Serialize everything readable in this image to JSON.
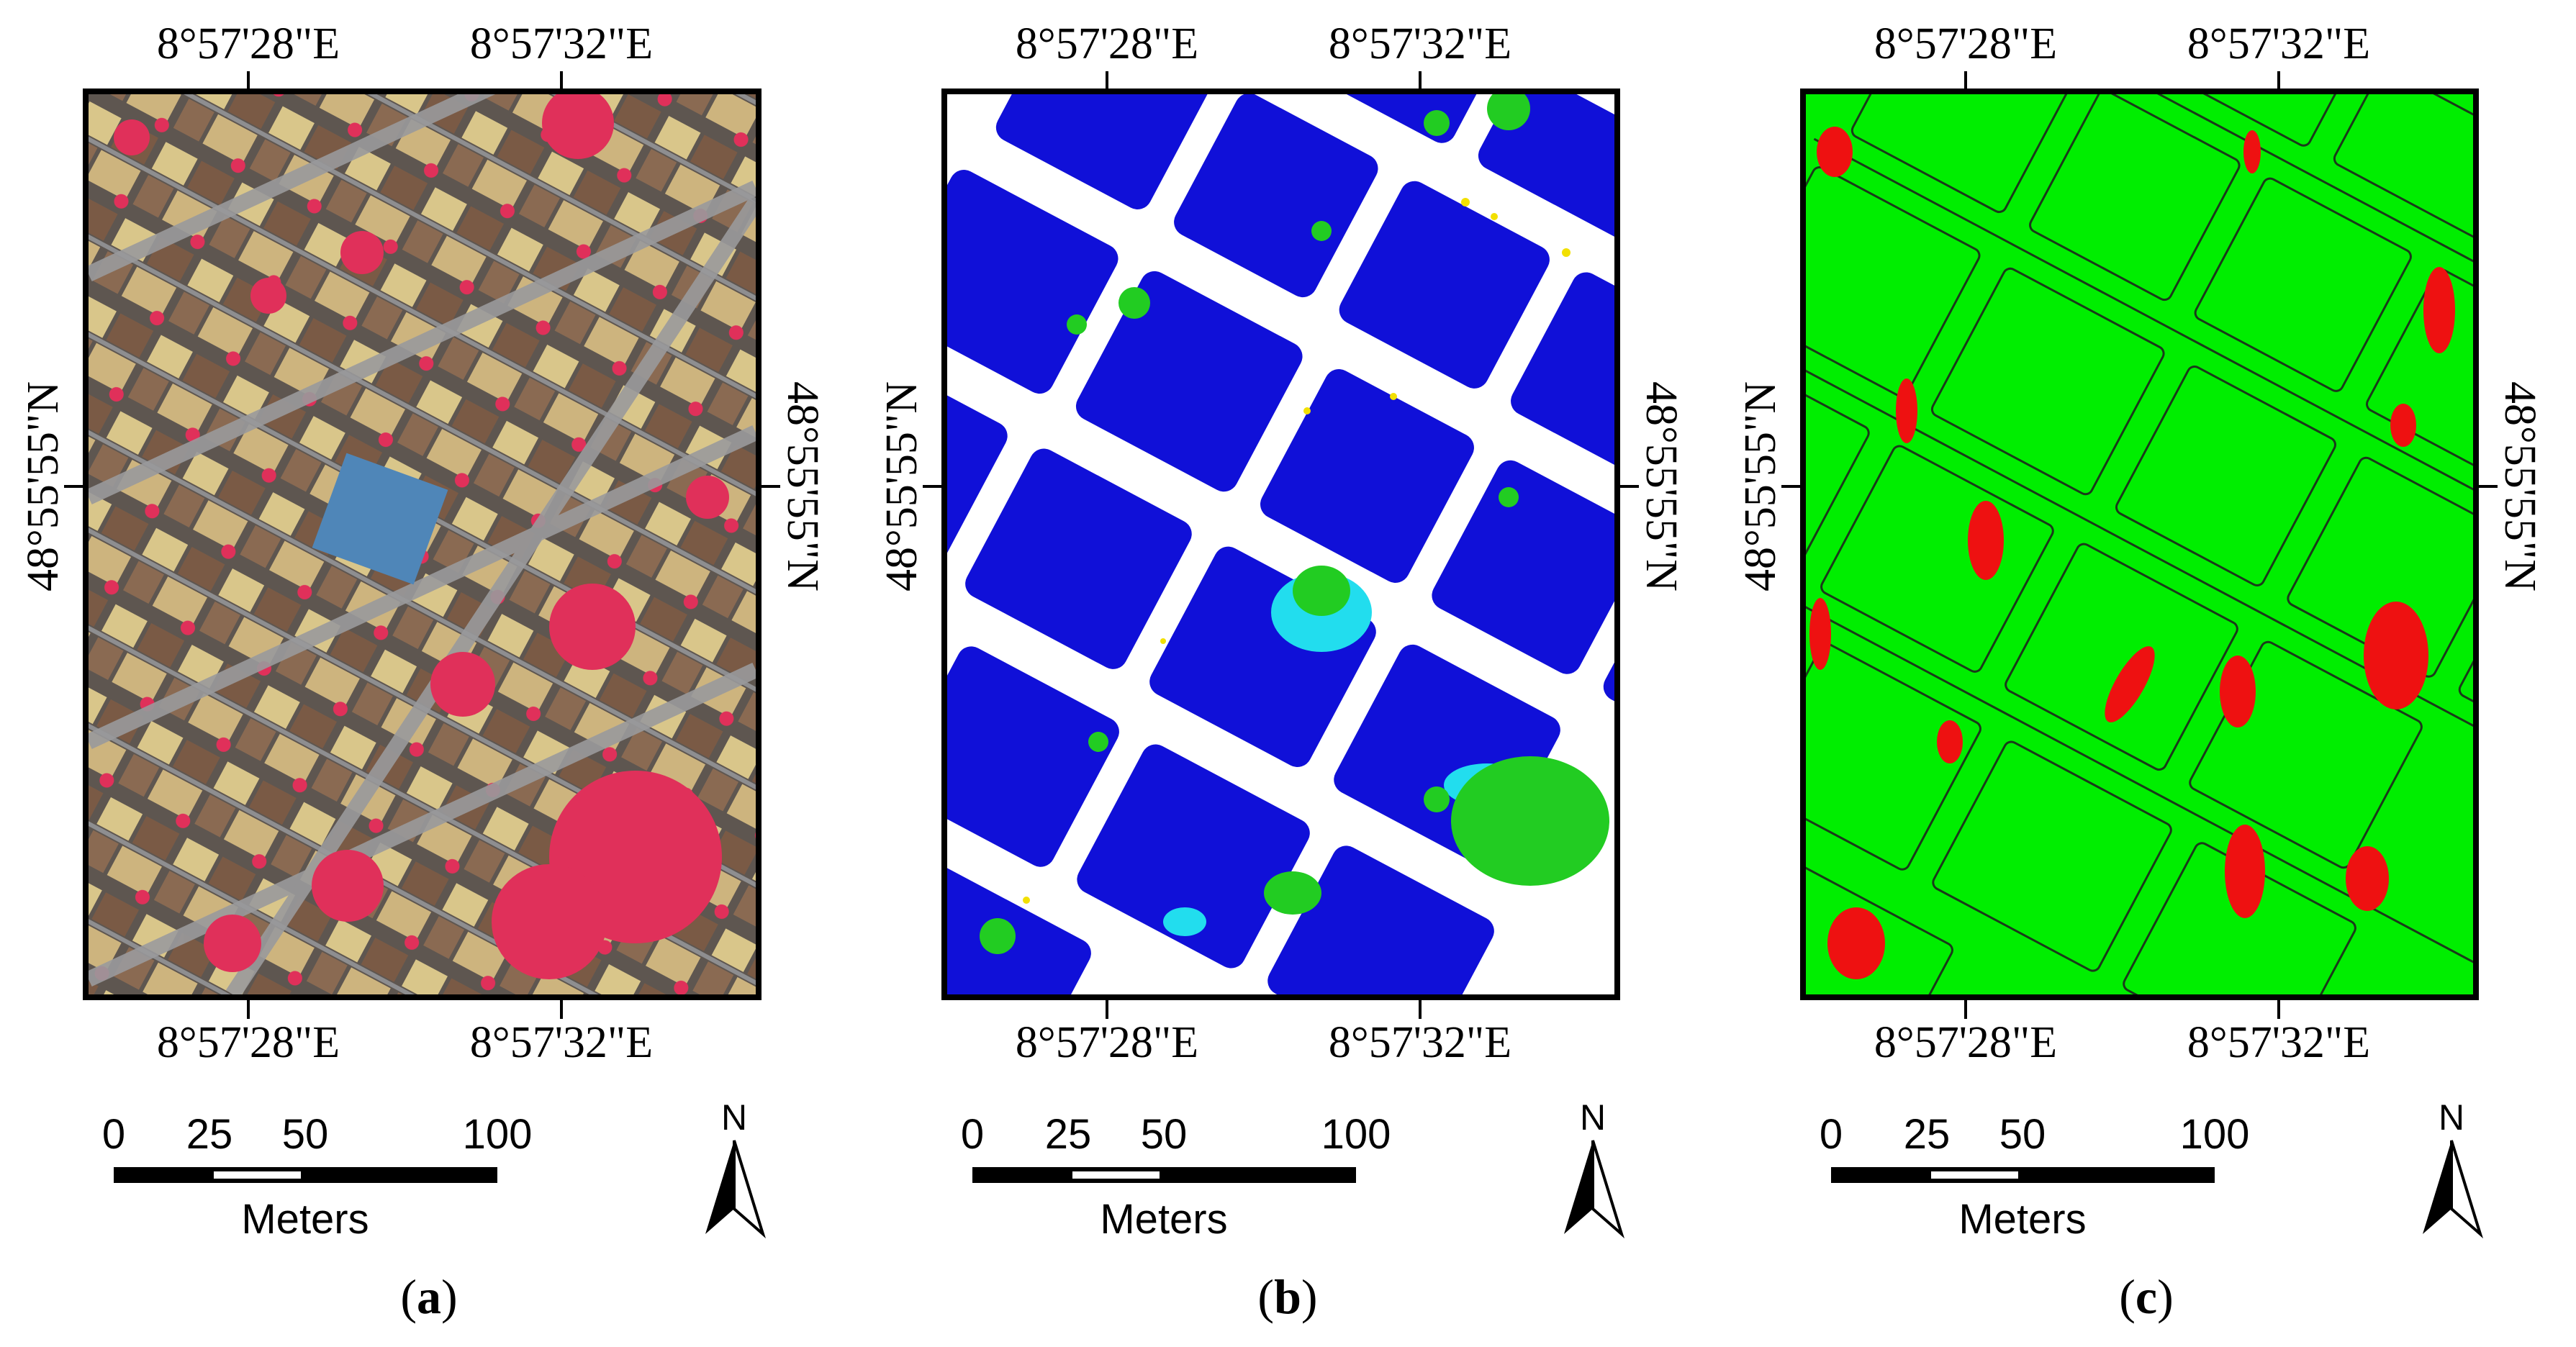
{
  "panels": [
    {
      "letter": "a",
      "lon_labels": [
        "8°57'28\"E",
        "8°57'32\"E"
      ],
      "lat_label": "48°55'55\"N",
      "scale": {
        "ticks": [
          "0",
          "25",
          "50",
          "100"
        ],
        "unit": "Meters"
      },
      "north": "N",
      "image": "false-color infrared aerial image of urban area"
    },
    {
      "letter": "b",
      "lon_labels": [
        "8°57'28\"E",
        "8°57'32\"E"
      ],
      "lat_label": "48°55'55\"N",
      "scale": {
        "ticks": [
          "0",
          "25",
          "50",
          "100"
        ],
        "unit": "Meters"
      },
      "north": "N",
      "image": "classification map: blue buildings, green vegetation, cyan, yellow on white"
    },
    {
      "letter": "c",
      "lon_labels": [
        "8°57'28\"E",
        "8°57'32\"E"
      ],
      "lat_label": "48°55'55\"N",
      "scale": {
        "ticks": [
          "0",
          "25",
          "50",
          "100"
        ],
        "unit": "Meters"
      },
      "north": "N",
      "image": "accuracy map: green correct, red error, black building outlines"
    }
  ],
  "colors": {
    "aerial_bg": "#6b6a66",
    "roof_tan": "#d9c68a",
    "roof_brown": "#7a5a45",
    "vegetation_ir": "#e0305a",
    "building_blue": "#1010d8",
    "veg_green": "#22cc22",
    "water_cyan": "#22ddee",
    "other_yellow": "#f2e000",
    "correct_green": "#00ee00",
    "error_red": "#ee1111"
  }
}
